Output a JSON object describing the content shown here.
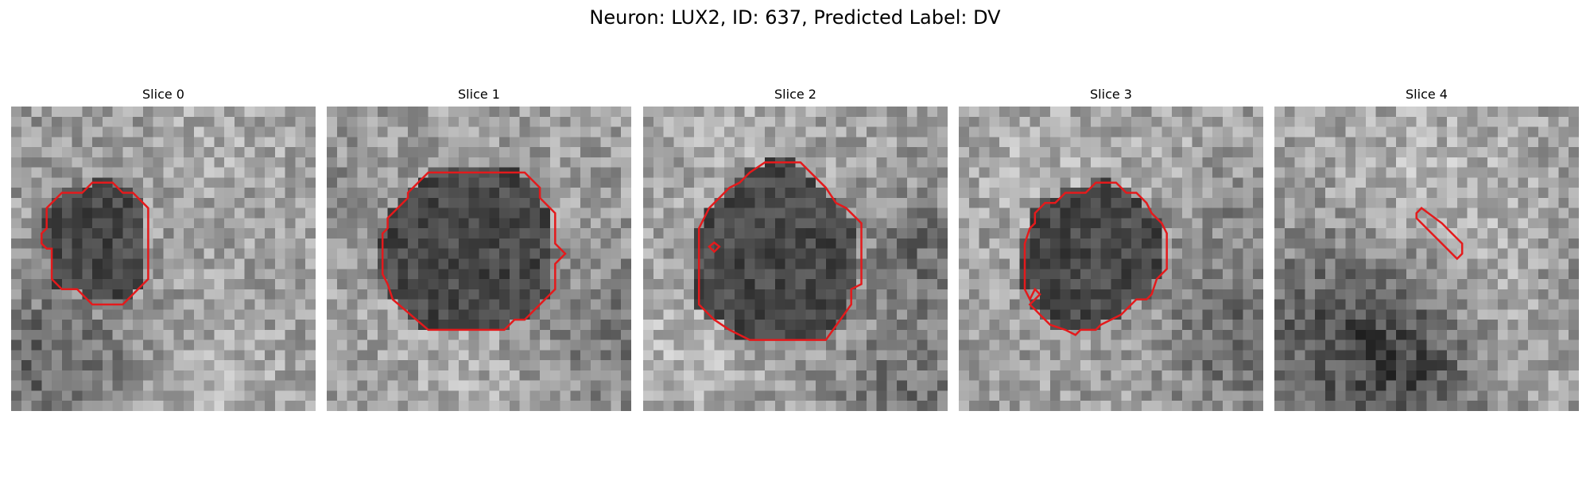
{
  "figure": {
    "title": "Neuron: LUX2, ID: 637, Predicted Label: DV",
    "contour_color": "#e41a1c",
    "colormap": "gray",
    "slices": [
      {
        "title": "Slice 0",
        "contour": [
          [
            8.0,
            7.5
          ],
          [
            10.0,
            7.5
          ],
          [
            11.0,
            8.5
          ],
          [
            12.0,
            8.5
          ],
          [
            13.5,
            10.0
          ],
          [
            13.5,
            17.0
          ],
          [
            11.0,
            19.5
          ],
          [
            8.0,
            19.5
          ],
          [
            6.5,
            18.0
          ],
          [
            5.0,
            18.0
          ],
          [
            4.0,
            17.0
          ],
          [
            4.0,
            14.0
          ],
          [
            3.5,
            14.0
          ],
          [
            3.0,
            13.5
          ],
          [
            3.0,
            12.5
          ],
          [
            3.5,
            12.0
          ],
          [
            3.5,
            10.0
          ],
          [
            5.0,
            8.5
          ],
          [
            7.0,
            8.5
          ]
        ]
      },
      {
        "title": "Slice 1",
        "contour": [
          [
            10.0,
            6.5
          ],
          [
            19.5,
            6.5
          ],
          [
            21.0,
            8.0
          ],
          [
            21.0,
            9.0
          ],
          [
            22.5,
            10.5
          ],
          [
            22.5,
            13.5
          ],
          [
            23.5,
            14.5
          ],
          [
            22.5,
            15.5
          ],
          [
            22.5,
            18.0
          ],
          [
            19.5,
            21.0
          ],
          [
            18.5,
            21.0
          ],
          [
            17.5,
            22.0
          ],
          [
            10.0,
            22.0
          ],
          [
            6.5,
            19.0
          ],
          [
            6.0,
            17.5
          ],
          [
            5.5,
            16.5
          ],
          [
            5.5,
            12.5
          ],
          [
            6.0,
            12.0
          ],
          [
            6.0,
            11.0
          ],
          [
            8.0,
            9.0
          ],
          [
            8.0,
            8.5
          ]
        ]
      },
      {
        "title": "Slice 2",
        "contour": [
          [
            12.0,
            5.5
          ],
          [
            15.5,
            5.5
          ],
          [
            18.0,
            8.0
          ],
          [
            19.0,
            9.5
          ],
          [
            20.0,
            10.0
          ],
          [
            21.5,
            11.5
          ],
          [
            21.5,
            17.5
          ],
          [
            20.5,
            18.0
          ],
          [
            20.5,
            19.5
          ],
          [
            18.0,
            23.0
          ],
          [
            10.5,
            23.0
          ],
          [
            8.5,
            22.0
          ],
          [
            7.0,
            21.0
          ],
          [
            5.5,
            19.5
          ],
          [
            5.5,
            12.0
          ],
          [
            6.0,
            11.0
          ],
          [
            6.5,
            10.0
          ],
          [
            8.5,
            8.0
          ],
          [
            9.5,
            7.5
          ],
          [
            10.5,
            6.5
          ]
        ]
      },
      {
        "title": "Slice 3",
        "contour": [
          [
            13.5,
            7.5
          ],
          [
            15.5,
            7.5
          ],
          [
            16.5,
            8.5
          ],
          [
            17.5,
            8.5
          ],
          [
            18.5,
            9.5
          ],
          [
            19.0,
            10.5
          ],
          [
            20.0,
            11.5
          ],
          [
            20.5,
            12.5
          ],
          [
            20.5,
            16.0
          ],
          [
            19.5,
            17.0
          ],
          [
            19.0,
            18.5
          ],
          [
            18.5,
            19.0
          ],
          [
            17.5,
            19.0
          ],
          [
            16.5,
            20.0
          ],
          [
            16.0,
            20.5
          ],
          [
            15.0,
            21.0
          ],
          [
            14.0,
            21.5
          ],
          [
            13.5,
            22.0
          ],
          [
            12.0,
            22.0
          ],
          [
            11.5,
            22.5
          ],
          [
            10.5,
            22.0
          ],
          [
            9.0,
            21.5
          ],
          [
            8.5,
            21.0
          ],
          [
            8.0,
            20.5
          ],
          [
            7.5,
            20.0
          ],
          [
            7.0,
            19.5
          ],
          [
            8.0,
            18.5
          ],
          [
            7.5,
            18.0
          ],
          [
            7.0,
            19.0
          ],
          [
            6.5,
            18.0
          ],
          [
            6.5,
            13.5
          ],
          [
            7.0,
            12.0
          ],
          [
            7.5,
            11.5
          ],
          [
            7.5,
            10.5
          ],
          [
            8.5,
            9.5
          ],
          [
            9.5,
            9.5
          ],
          [
            10.5,
            8.5
          ],
          [
            12.5,
            8.5
          ]
        ]
      },
      {
        "title": "Slice 4",
        "contour": [
          [
            14.5,
            10.0
          ],
          [
            16.5,
            11.5
          ],
          [
            17.5,
            12.5
          ],
          [
            18.5,
            13.5
          ],
          [
            18.5,
            14.5
          ],
          [
            18.0,
            15.0
          ],
          [
            17.5,
            14.5
          ],
          [
            16.5,
            13.5
          ],
          [
            15.5,
            12.5
          ],
          [
            14.5,
            11.5
          ],
          [
            14.0,
            11.0
          ],
          [
            14.0,
            10.5
          ]
        ]
      }
    ]
  }
}
